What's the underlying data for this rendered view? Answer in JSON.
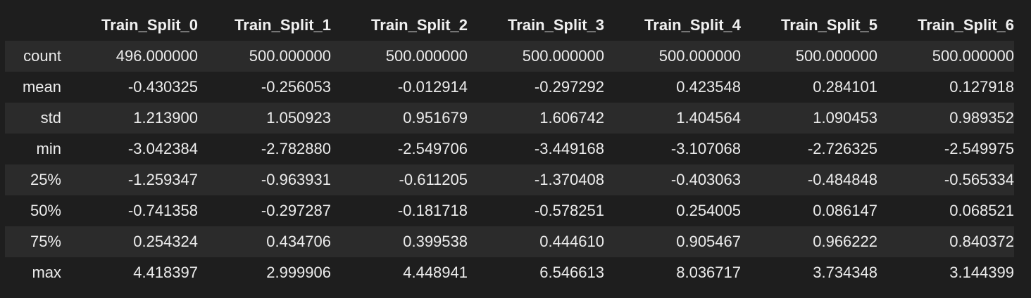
{
  "table": {
    "columns": [
      "Train_Split_0",
      "Train_Split_1",
      "Train_Split_2",
      "Train_Split_3",
      "Train_Split_4",
      "Train_Split_5",
      "Train_Split_6"
    ],
    "rows": [
      {
        "index": "count",
        "values": [
          "496.000000",
          "500.000000",
          "500.000000",
          "500.000000",
          "500.000000",
          "500.000000",
          "500.000000"
        ]
      },
      {
        "index": "mean",
        "values": [
          "-0.430325",
          "-0.256053",
          "-0.012914",
          "-0.297292",
          "0.423548",
          "0.284101",
          "0.127918"
        ]
      },
      {
        "index": "std",
        "values": [
          "1.213900",
          "1.050923",
          "0.951679",
          "1.606742",
          "1.404564",
          "1.090453",
          "0.989352"
        ]
      },
      {
        "index": "min",
        "values": [
          "-3.042384",
          "-2.782880",
          "-2.549706",
          "-3.449168",
          "-3.107068",
          "-2.726325",
          "-2.549975"
        ]
      },
      {
        "index": "25%",
        "values": [
          "-1.259347",
          "-0.963931",
          "-0.611205",
          "-1.370408",
          "-0.403063",
          "-0.484848",
          "-0.565334"
        ]
      },
      {
        "index": "50%",
        "values": [
          "-0.741358",
          "-0.297287",
          "-0.181718",
          "-0.578251",
          "0.254005",
          "0.086147",
          "0.068521"
        ]
      },
      {
        "index": "75%",
        "values": [
          "0.254324",
          "0.434706",
          "0.399538",
          "0.444610",
          "0.905467",
          "0.966222",
          "0.840372"
        ]
      },
      {
        "index": "max",
        "values": [
          "4.418397",
          "2.999906",
          "4.448941",
          "6.546613",
          "8.036717",
          "3.734348",
          "3.144399"
        ]
      }
    ]
  },
  "colors": {
    "background": "#1e1e1e",
    "row_stripe": "#2b2b2b",
    "text": "#ececec"
  }
}
